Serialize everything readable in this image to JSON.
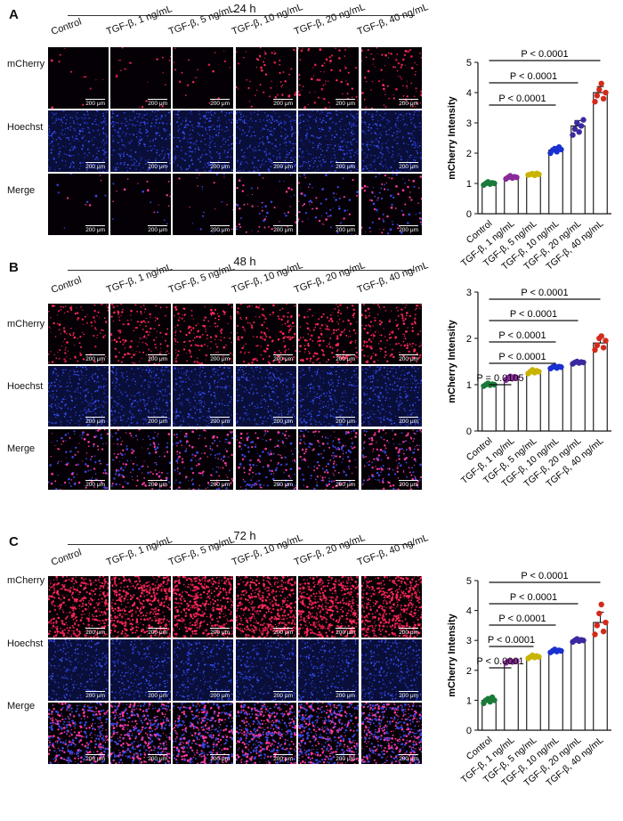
{
  "conditions": [
    "Control",
    "TGF-β, 1 ng/mL",
    "TGF-β, 5 ng/mL",
    "TGF-β, 10 ng/mL",
    "TGF-β, 20 ng/mL",
    "TGF-β, 40 ng/mL"
  ],
  "rows": [
    "mCherry",
    "Hoechst",
    "Merge"
  ],
  "scale_bar": "200 μm",
  "colors": {
    "mcherry": "#ff2a5a",
    "hoechst": "#2f3fe0",
    "dots": [
      "#1a7a3a",
      "#8a2a9a",
      "#c8b400",
      "#1a30d0",
      "#3a2aa0",
      "#d42a1a"
    ]
  },
  "panels": [
    {
      "label": "A",
      "timepoint": "24 h"
    },
    {
      "label": "B",
      "timepoint": "48 h"
    },
    {
      "label": "C",
      "timepoint": "72 h"
    }
  ],
  "chart_data": [
    {
      "type": "bar",
      "ylabel": "mCherry Intensity",
      "ylim": [
        0,
        5
      ],
      "yticks": [
        0,
        1,
        2,
        3,
        4,
        5
      ],
      "categories": [
        "Control",
        "TGF-β, 1 ng/mL",
        "TGF-β, 5 ng/mL",
        "TGF-β, 10 ng/mL",
        "TGF-β, 20 ng/mL",
        "TGF-β, 40 ng/mL"
      ],
      "values": [
        1.0,
        1.2,
        1.3,
        2.1,
        2.9,
        4.0
      ],
      "points": [
        [
          0.95,
          1.0,
          1.05,
          0.98,
          1.02,
          1.0
        ],
        [
          1.15,
          1.2,
          1.25,
          1.18,
          1.22,
          1.2
        ],
        [
          1.28,
          1.3,
          1.32,
          1.27,
          1.33,
          1.3
        ],
        [
          2.0,
          2.1,
          2.15,
          2.05,
          2.2,
          2.12
        ],
        [
          2.6,
          2.8,
          3.0,
          2.7,
          2.9,
          3.1
        ],
        [
          3.7,
          3.9,
          4.1,
          4.3,
          3.8,
          4.0
        ]
      ],
      "sig": [
        {
          "label": "P < 0.0001",
          "to": 3
        },
        {
          "label": "P < 0.0001",
          "to": 4
        },
        {
          "label": "P < 0.0001",
          "to": 5
        }
      ]
    },
    {
      "type": "bar",
      "ylabel": "mCherry Intensity",
      "ylim": [
        0,
        3
      ],
      "yticks": [
        0,
        1,
        2,
        3
      ],
      "categories": [
        "Control",
        "TGF-β, 1 ng/mL",
        "TGF-β, 5 ng/mL",
        "TGF-β, 10 ng/mL",
        "TGF-β, 20 ng/mL",
        "TGF-β, 40 ng/mL"
      ],
      "values": [
        1.0,
        1.15,
        1.28,
        1.38,
        1.48,
        1.9
      ],
      "points": [
        [
          0.97,
          1.0,
          1.03,
          0.99,
          1.01,
          1.0
        ],
        [
          1.1,
          1.15,
          1.18,
          1.13,
          1.17,
          1.15
        ],
        [
          1.24,
          1.28,
          1.32,
          1.26,
          1.3,
          1.28
        ],
        [
          1.35,
          1.38,
          1.4,
          1.36,
          1.39,
          1.38
        ],
        [
          1.45,
          1.48,
          1.5,
          1.47,
          1.49,
          1.48
        ],
        [
          1.75,
          1.85,
          2.0,
          2.05,
          1.8,
          1.95
        ]
      ],
      "sig": [
        {
          "label": "P = 0.0105",
          "to": 1
        },
        {
          "label": "P < 0.0001",
          "to": 3
        },
        {
          "label": "P < 0.0001",
          "to": 3
        },
        {
          "label": "P < 0.0001",
          "to": 4
        },
        {
          "label": "P < 0.0001",
          "to": 5
        }
      ]
    },
    {
      "type": "bar",
      "ylabel": "mCherry Intensity",
      "ylim": [
        0,
        5
      ],
      "yticks": [
        0,
        1,
        2,
        3,
        4,
        5
      ],
      "categories": [
        "Control",
        "TGF-β, 1 ng/mL",
        "TGF-β, 5 ng/mL",
        "TGF-β, 10 ng/mL",
        "TGF-β, 20 ng/mL",
        "TGF-β, 40 ng/mL"
      ],
      "values": [
        1.0,
        2.3,
        2.45,
        2.65,
        3.0,
        3.6
      ],
      "points": [
        [
          0.9,
          1.0,
          1.05,
          0.95,
          1.1,
          1.0
        ],
        [
          2.25,
          2.3,
          2.32,
          2.28,
          2.3,
          2.31
        ],
        [
          2.4,
          2.45,
          2.5,
          2.43,
          2.48,
          2.45
        ],
        [
          2.6,
          2.65,
          2.7,
          2.63,
          2.67,
          2.65
        ],
        [
          2.95,
          3.0,
          3.05,
          2.98,
          3.02,
          3.0
        ],
        [
          3.2,
          3.5,
          3.9,
          4.2,
          3.3,
          3.6
        ]
      ],
      "sig": [
        {
          "label": "P < 0.0001",
          "to": 1
        },
        {
          "label": "P < 0.0001",
          "to": 2
        },
        {
          "label": "P < 0.0001",
          "to": 3
        },
        {
          "label": "P < 0.0001",
          "to": 4
        },
        {
          "label": "P < 0.0001",
          "to": 5
        }
      ]
    }
  ]
}
